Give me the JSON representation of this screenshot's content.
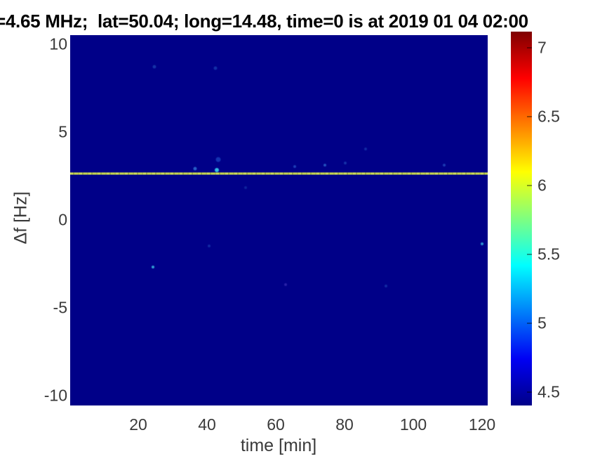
{
  "title": "=4.65 MHz;  lat=50.04; long=14.48, time=0 is at 2019 01 04 02:00",
  "axes": {
    "xlabel": "time [min]",
    "ylabel": "Δf [Hz]",
    "xticks": [
      "20",
      "40",
      "60",
      "80",
      "100",
      "120"
    ],
    "yticks": [
      "10",
      "5",
      "0",
      "-5",
      "-10"
    ]
  },
  "colorbar": {
    "tick_labels": [
      "7",
      "6.5",
      "6",
      "5.5",
      "5",
      "4.5"
    ]
  },
  "colors": {
    "heatmap_background": "#000088",
    "spectral_line": "#c6d14e",
    "tick_text": "#3a3a3a",
    "title_text": "#000000"
  },
  "chart_data": {
    "type": "heatmap",
    "title": "=4.65 MHz;  lat=50.04; long=14.48, time=0 is at 2019 01 04 02:00",
    "xlabel": "time [min]",
    "ylabel": "Δf [Hz]",
    "xlim": [
      0.2,
      121.6
    ],
    "ylim": [
      -10.5,
      10.6
    ],
    "x_ticks": [
      20,
      40,
      60,
      80,
      100,
      120
    ],
    "y_ticks": [
      10,
      5,
      0,
      -5,
      -10
    ],
    "colormap": "jet",
    "color_scale_range": [
      4.4,
      7.1
    ],
    "colorbar_ticks": [
      7,
      6.5,
      6,
      5.5,
      5,
      4.5
    ],
    "background_value": 4.45,
    "grid": false,
    "legend": "none",
    "features": {
      "horizontal_line": {
        "delta_f_hz": 2.7,
        "approx_value": 6.0,
        "style": "dashed narrow spectral line spanning full time range",
        "color": "#c6d14e"
      },
      "speckles": [
        {
          "t": 24.7,
          "df": 8.8,
          "color": "#1b3fae",
          "size": 5,
          "opacity": 0.8
        },
        {
          "t": 42.4,
          "df": 8.7,
          "color": "#1b44b4",
          "size": 5,
          "opacity": 0.7
        },
        {
          "t": 36.5,
          "df": 3.0,
          "color": "#2c6fd0",
          "size": 5,
          "opacity": 0.85
        },
        {
          "t": 43.3,
          "df": 3.5,
          "color": "#2255cc",
          "size": 7,
          "opacity": 0.6
        },
        {
          "t": 42.9,
          "df": 2.9,
          "color": "#35c8e8",
          "size": 6,
          "opacity": 0.95
        },
        {
          "t": 65.5,
          "df": 3.1,
          "color": "#2a58c8",
          "size": 4,
          "opacity": 0.7
        },
        {
          "t": 74.3,
          "df": 3.2,
          "color": "#2f6ad0",
          "size": 4,
          "opacity": 0.75
        },
        {
          "t": 80.2,
          "df": 3.3,
          "color": "#2450c0",
          "size": 4,
          "opacity": 0.6
        },
        {
          "t": 86.0,
          "df": 4.1,
          "color": "#1e46b6",
          "size": 4,
          "opacity": 0.6
        },
        {
          "t": 109.0,
          "df": 3.2,
          "color": "#2a58c8",
          "size": 4,
          "opacity": 0.65
        },
        {
          "t": 24.3,
          "df": -2.6,
          "color": "#38b4dc",
          "size": 4,
          "opacity": 0.9
        },
        {
          "t": 40.6,
          "df": -1.4,
          "color": "#1e46b6",
          "size": 4,
          "opacity": 0.6
        },
        {
          "t": 51.2,
          "df": 1.9,
          "color": "#1b3fae",
          "size": 4,
          "opacity": 0.55
        },
        {
          "t": 62.9,
          "df": -3.6,
          "color": "#4a3cc0",
          "size": 4,
          "opacity": 0.55
        },
        {
          "t": 92.0,
          "df": -3.7,
          "color": "#1e46b6",
          "size": 4,
          "opacity": 0.6
        },
        {
          "t": 120.0,
          "df": -1.3,
          "color": "#34b0e0",
          "size": 4,
          "opacity": 0.85
        }
      ]
    }
  }
}
